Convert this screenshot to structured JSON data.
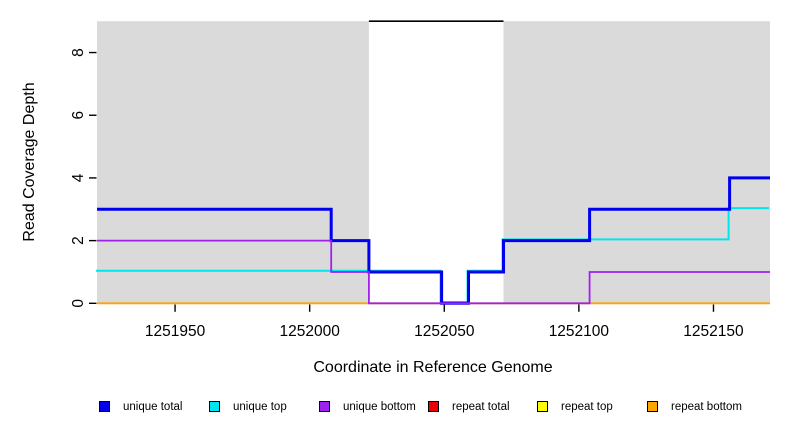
{
  "chart_data": {
    "type": "line",
    "variant": "step-coverage",
    "title": "",
    "xlabel": "Coordinate in Reference Genome",
    "ylabel": "Read Coverage Depth",
    "xlim": [
      1251921,
      1252171
    ],
    "ylim": [
      0,
      9
    ],
    "x_ticks": [
      1251950,
      1252000,
      1252050,
      1252100,
      1252150
    ],
    "y_ticks": [
      0,
      2,
      4,
      6,
      8
    ],
    "grid": false,
    "legend_position": "bottom",
    "panel_background": "#DADADA",
    "figure_background": "#FFFFFF",
    "repeat_region": {
      "x_start": 1252022,
      "x_end": 1252072,
      "fill": "#FFFFFF",
      "top_border_color": "#000000"
    },
    "series": [
      {
        "name": "unique total",
        "color": "#0000EE",
        "line_width": 3,
        "x_breaks": [
          1251921,
          1252008,
          1252022,
          1252049,
          1252059,
          1252072,
          1252104,
          1252156,
          1252171
        ],
        "levels": [
          3,
          2,
          1,
          0,
          1,
          2,
          3,
          4
        ]
      },
      {
        "name": "unique top",
        "color": "#00E5EE",
        "line_width": 2,
        "x_breaks": [
          1251921,
          1252049,
          1252059,
          1252072,
          1252156,
          1252171
        ],
        "levels": [
          1,
          0,
          1,
          2,
          3
        ]
      },
      {
        "name": "unique bottom",
        "color": "#A020F0",
        "line_width": 1.8,
        "x_breaks": [
          1251921,
          1252008,
          1252022,
          1252104,
          1252171
        ],
        "levels": [
          2,
          1,
          0,
          1
        ]
      },
      {
        "name": "repeat total",
        "color": "#EE0000",
        "line_width": 1.5,
        "x_breaks": [
          1251921,
          1252171
        ],
        "levels": [
          0
        ]
      },
      {
        "name": "repeat top",
        "color": "#FFFF00",
        "line_width": 1.5,
        "x_breaks": [
          1251921,
          1252171
        ],
        "levels": [
          0
        ]
      },
      {
        "name": "repeat bottom",
        "color": "#FFA500",
        "line_width": 1.8,
        "x_breaks": [
          1251921,
          1252171
        ],
        "levels": [
          0
        ]
      }
    ]
  }
}
